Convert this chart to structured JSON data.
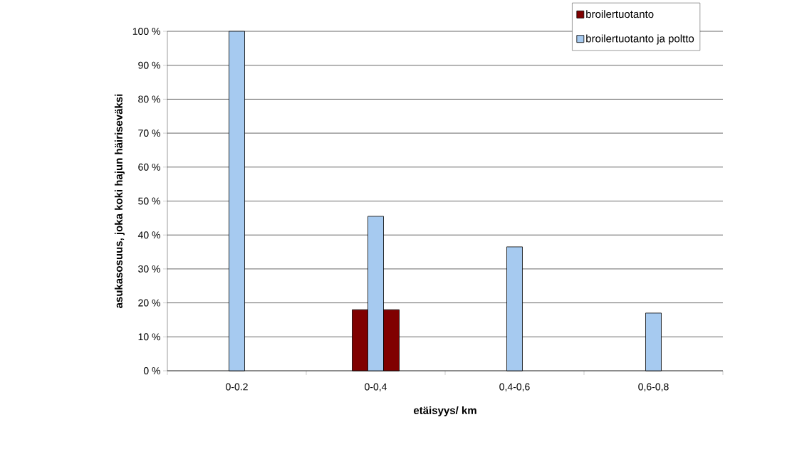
{
  "chart_data": {
    "type": "bar",
    "categories": [
      "0-0.2",
      "0-0,4",
      "0,4-0,6",
      "0,6-0,8"
    ],
    "series": [
      {
        "name": "broilertuotanto",
        "color": "#800000",
        "values": [
          null,
          18,
          null,
          null
        ]
      },
      {
        "name": "broilertuotanto ja poltto",
        "color": "#a6caf0",
        "values": [
          100,
          45.5,
          36.5,
          17
        ]
      },
      {
        "color": "#800000",
        "values": [
          null,
          18,
          null,
          null
        ]
      }
    ],
    "xlabel": "etäisyys/ km",
    "ylabel": "asukasosuus, joka koki hajun häiriseväksi",
    "ylim": [
      0,
      100
    ],
    "yticks": [
      {
        "value": 0,
        "label": "0 %"
      },
      {
        "value": 10,
        "label": "10 %"
      },
      {
        "value": 20,
        "label": "20 %"
      },
      {
        "value": 30,
        "label": "30 %"
      },
      {
        "value": 40,
        "label": "40 %"
      },
      {
        "value": 50,
        "label": "50 %"
      },
      {
        "value": 60,
        "label": "60 %"
      },
      {
        "value": 70,
        "label": "70 %"
      },
      {
        "value": 80,
        "label": "80 %"
      },
      {
        "value": 90,
        "label": "90 %"
      },
      {
        "value": 100,
        "label": "100 %"
      }
    ],
    "grid": "y",
    "legend": "top right"
  }
}
